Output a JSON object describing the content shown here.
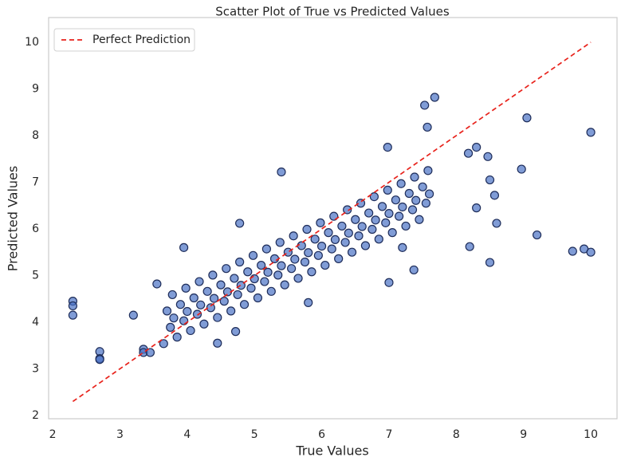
{
  "chart_data": {
    "type": "scatter",
    "title": "Scatter Plot of True vs Predicted Values",
    "x_label": "True Values",
    "y_label": "Predicted Values",
    "point_color": "#4a72c4",
    "point_edge_color": "#1e2d5a",
    "xlim": [
      1.94,
      10.39
    ],
    "ylim": [
      1.93,
      10.53
    ],
    "xticks": [
      2,
      3,
      4,
      5,
      6,
      7,
      8,
      9,
      10
    ],
    "yticks": [
      2,
      3,
      4,
      5,
      6,
      7,
      8,
      9,
      10
    ],
    "grid": false,
    "legend": "upper left",
    "reference_line": {
      "name": "Perfect Prediction",
      "color": "#e8221b",
      "x": [
        2.3,
        10
      ],
      "y": [
        2.3,
        10
      ]
    },
    "x": [
      2.3,
      2.3,
      2.3,
      2.7,
      2.7,
      2.7,
      3.2,
      3.35,
      3.35,
      3.45,
      9.05,
      10,
      8.97,
      9.2,
      9.73,
      9.9,
      10,
      7.68,
      7.53,
      7.57,
      8.5,
      8.57,
      8.3,
      8.5,
      8.47,
      8.3,
      7.0,
      7.37,
      5.4,
      4.78,
      3.55,
      3.95,
      4.45,
      4.72,
      5.8,
      6.98,
      8.18,
      8.6,
      8.2,
      7.2,
      3.65,
      3.75,
      3.7,
      3.78,
      3.8,
      3.85,
      3.95,
      3.9,
      3.98,
      4.0,
      4.05,
      4.15,
      4.1,
      4.18,
      4.2,
      4.25,
      4.35,
      4.3,
      4.38,
      4.4,
      4.45,
      4.55,
      4.5,
      4.58,
      4.6,
      4.65,
      4.75,
      4.7,
      4.78,
      4.8,
      4.85,
      4.95,
      4.9,
      4.98,
      5.0,
      5.05,
      5.15,
      5.1,
      5.18,
      5.2,
      5.25,
      5.35,
      5.3,
      5.38,
      5.4,
      5.45,
      5.55,
      5.5,
      5.58,
      5.6,
      5.65,
      5.75,
      5.7,
      5.78,
      5.8,
      5.85,
      5.95,
      5.9,
      5.98,
      6.0,
      6.05,
      6.15,
      6.1,
      6.18,
      6.2,
      6.25,
      6.35,
      6.3,
      6.38,
      6.4,
      6.45,
      6.55,
      6.5,
      6.58,
      6.6,
      6.65,
      6.75,
      6.7,
      6.78,
      6.8,
      6.85,
      6.95,
      6.9,
      6.98,
      7.0,
      7.05,
      7.15,
      7.1,
      7.18,
      7.2,
      7.25,
      7.35,
      7.3,
      7.38,
      7.4,
      7.45,
      7.55,
      7.5,
      7.58,
      7.6
    ],
    "y": [
      4.45,
      4.35,
      4.15,
      3.37,
      3.22,
      3.2,
      4.15,
      3.42,
      3.35,
      3.35,
      8.38,
      8.07,
      7.28,
      5.87,
      5.52,
      5.57,
      5.5,
      8.82,
      8.65,
      8.18,
      5.28,
      6.72,
      6.45,
      7.05,
      7.55,
      7.75,
      4.85,
      5.12,
      7.22,
      6.12,
      4.82,
      5.6,
      3.55,
      3.8,
      4.42,
      7.75,
      7.62,
      6.12,
      5.62,
      5.6,
      3.54,
      3.89,
      4.24,
      4.59,
      4.09,
      3.68,
      4.03,
      4.38,
      4.73,
      4.23,
      3.82,
      4.17,
      4.52,
      4.87,
      4.37,
      3.96,
      4.31,
      4.66,
      5.01,
      4.51,
      4.1,
      4.45,
      4.8,
      5.15,
      4.65,
      4.24,
      4.59,
      4.94,
      5.29,
      4.79,
      4.38,
      4.73,
      5.08,
      5.43,
      4.93,
      4.52,
      4.87,
      5.22,
      5.57,
      5.07,
      4.66,
      5.01,
      5.36,
      5.71,
      5.21,
      4.8,
      5.15,
      5.5,
      5.85,
      5.35,
      4.94,
      5.29,
      5.64,
      5.99,
      5.49,
      5.08,
      5.43,
      5.78,
      6.13,
      5.63,
      5.22,
      5.57,
      5.92,
      6.27,
      5.77,
      5.36,
      5.71,
      6.06,
      6.41,
      5.91,
      5.5,
      5.85,
      6.2,
      6.55,
      6.05,
      5.64,
      5.99,
      6.34,
      6.69,
      6.19,
      5.78,
      6.13,
      6.48,
      6.83,
      6.33,
      5.92,
      6.27,
      6.62,
      6.97,
      6.47,
      6.06,
      6.41,
      6.76,
      7.11,
      6.61,
      6.2,
      6.55,
      6.9,
      7.25,
      6.75
    ]
  }
}
